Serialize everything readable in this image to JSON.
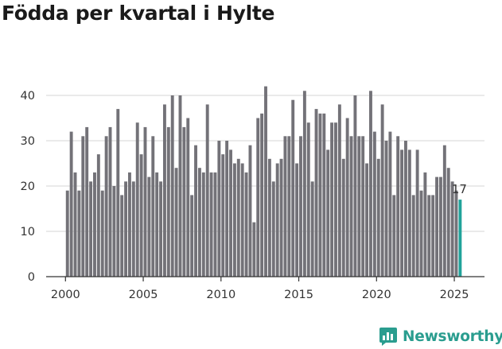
{
  "title": "Födda per kvartal i Hylte",
  "brand": {
    "name": "Newsworthy"
  },
  "colors": {
    "bar": "#737278",
    "highlight": "#20a39a",
    "brand": "#2a9d8f",
    "grid": "#d4d4d4"
  },
  "chart_data": {
    "type": "bar",
    "title": "Födda per kvartal i Hylte",
    "xlabel": "",
    "ylabel": "",
    "start": "2000-Q1",
    "x_ticks": [
      2000,
      2005,
      2010,
      2015,
      2020,
      2025
    ],
    "y_ticks": [
      0,
      10,
      20,
      30,
      40
    ],
    "ylim": [
      0,
      45
    ],
    "grid": "horizontal",
    "values": [
      19,
      32,
      23,
      19,
      31,
      33,
      21,
      23,
      27,
      19,
      31,
      33,
      20,
      37,
      18,
      21,
      23,
      21,
      34,
      27,
      33,
      22,
      31,
      23,
      21,
      38,
      33,
      40,
      24,
      40,
      33,
      35,
      18,
      29,
      24,
      23,
      38,
      23,
      23,
      30,
      27,
      30,
      28,
      25,
      26,
      25,
      23,
      29,
      12,
      35,
      36,
      42,
      26,
      21,
      25,
      26,
      31,
      31,
      39,
      25,
      31,
      41,
      34,
      21,
      37,
      36,
      36,
      28,
      34,
      34,
      38,
      26,
      35,
      31,
      40,
      31,
      31,
      25,
      41,
      32,
      26,
      38,
      30,
      32,
      18,
      31,
      28,
      30,
      28,
      18,
      28,
      19,
      23,
      18,
      18,
      22,
      22,
      29,
      24,
      21,
      19,
      17
    ],
    "highlight": {
      "quarter": "2025-Q2",
      "value": 17,
      "label": "17"
    }
  }
}
